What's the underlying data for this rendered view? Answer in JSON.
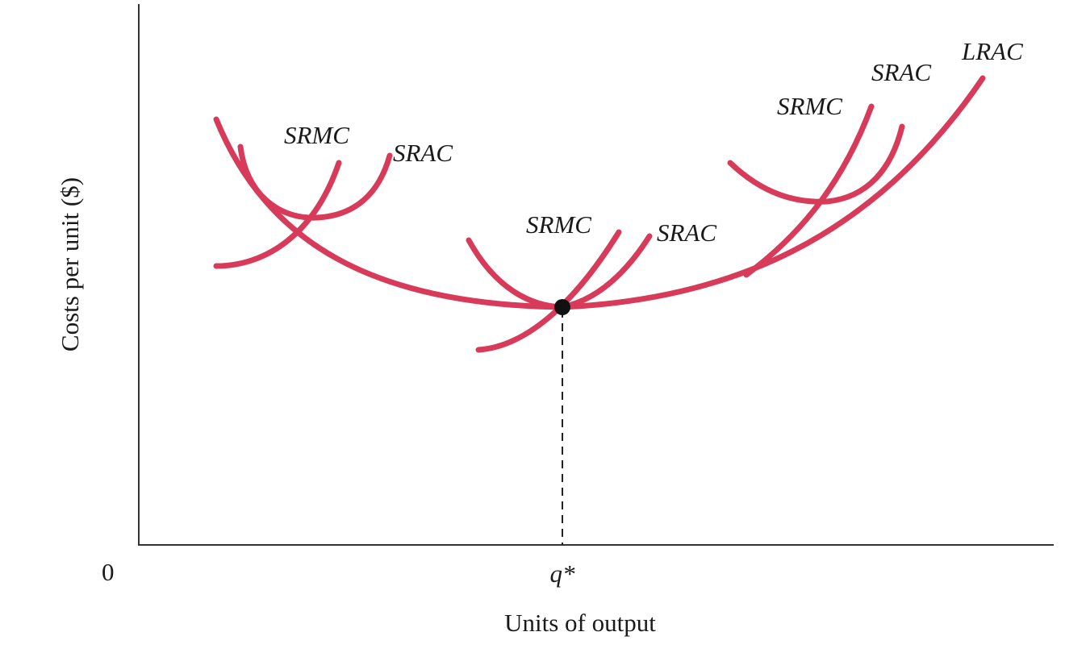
{
  "colors": {
    "curve": "#d83a5a",
    "axis": "#333333",
    "point": "#111111"
  },
  "axes": {
    "y_title": "Costs per unit ($)",
    "x_title": "Units of output",
    "origin_label": "0",
    "q_label": "q*"
  },
  "curve_labels": {
    "left_srmc": "SRMC",
    "left_srac": "SRAC",
    "mid_srmc": "SRMC",
    "mid_srac": "SRAC",
    "right_srmc": "SRMC",
    "right_srac": "SRAC",
    "lrac": "LRAC"
  }
}
